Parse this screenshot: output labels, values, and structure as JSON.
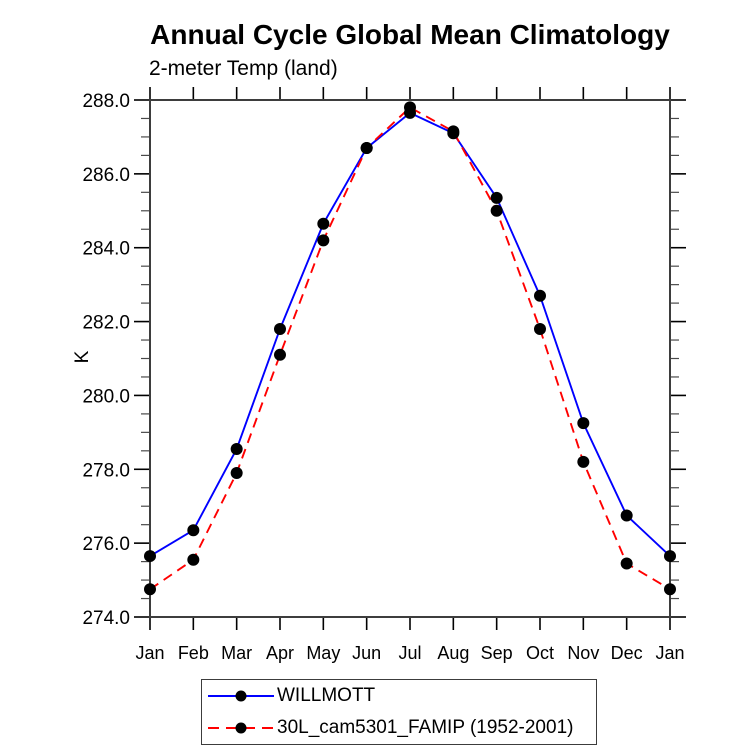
{
  "chart_data": {
    "type": "line",
    "title": "Annual Cycle Global Mean Climatology",
    "subtitle": "2-meter Temp (land)",
    "ylabel": "K",
    "xlabel": "",
    "categories": [
      "Jan",
      "Feb",
      "Mar",
      "Apr",
      "May",
      "Jun",
      "Jul",
      "Aug",
      "Sep",
      "Oct",
      "Nov",
      "Dec",
      "Jan"
    ],
    "ylim": [
      274.0,
      288.0
    ],
    "ytick_major_interval": 2.0,
    "ytick_minor_interval": 0.5,
    "ytick_labels": [
      "274.0",
      "276.0",
      "278.0",
      "280.0",
      "282.0",
      "284.0",
      "286.0",
      "288.0"
    ],
    "grid": false,
    "legend_position": "bottom",
    "marker": "filled-circle",
    "marker_color": "#000000",
    "series": [
      {
        "name": "WILLMOTT",
        "color": "#0000ff",
        "line_style": "solid",
        "values": [
          275.65,
          276.35,
          278.55,
          281.8,
          284.65,
          286.7,
          287.65,
          287.1,
          285.35,
          282.7,
          279.25,
          276.75,
          275.65
        ]
      },
      {
        "name": "30L_cam5301_FAMIP (1952-2001)",
        "color": "#ff0000",
        "line_style": "dashed",
        "values": [
          274.75,
          275.55,
          277.9,
          281.1,
          284.2,
          286.7,
          287.8,
          287.15,
          285.0,
          281.8,
          278.2,
          275.45,
          274.75
        ]
      }
    ]
  }
}
